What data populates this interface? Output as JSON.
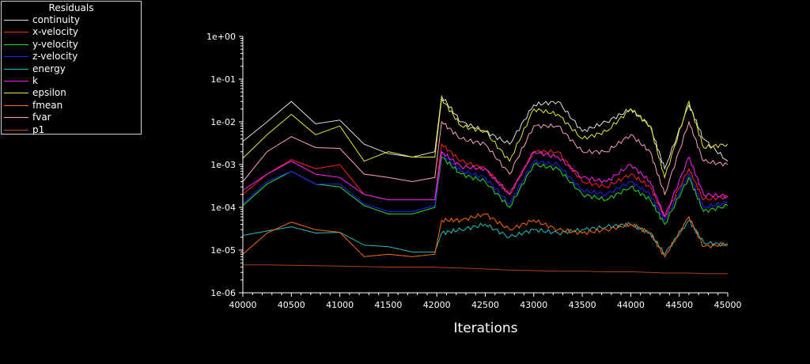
{
  "chart_data": {
    "type": "line",
    "title": "",
    "legend_title": "Residuals",
    "legend_position": "top-left",
    "xlabel": "Iterations",
    "ylabel": "",
    "xlim": [
      40000,
      45000
    ],
    "ylim": [
      1e-06,
      1
    ],
    "yscale": "log",
    "grid": false,
    "x_ticks": [
      40000,
      40500,
      41000,
      41500,
      42000,
      42500,
      43000,
      43500,
      44000,
      44500,
      45000
    ],
    "x_tick_labels": [
      "40000",
      "40500",
      "41000",
      "41500",
      "42000",
      "42500",
      "43000",
      "43500",
      "44000",
      "44500",
      "45000"
    ],
    "y_ticks": [
      1e-06,
      1e-05,
      0.0001,
      0.001,
      0.01,
      0.1,
      1
    ],
    "y_tick_labels": [
      "1e-06",
      "1e-05",
      "1e-04",
      "1e-03",
      "1e-02",
      "1e-01",
      "1e+00"
    ],
    "x": [
      40000,
      40250,
      40500,
      40750,
      41000,
      41250,
      41500,
      41750,
      41980,
      42050,
      42250,
      42500,
      42750,
      43000,
      43250,
      43500,
      43750,
      44000,
      44200,
      44350,
      44600,
      44750,
      45000
    ],
    "series": [
      {
        "name": "continuity",
        "color": "#e0e0e0",
        "values": [
          0.0035,
          0.01,
          0.03,
          0.009,
          0.011,
          0.003,
          0.0018,
          0.0015,
          0.002,
          0.04,
          0.01,
          0.006,
          0.003,
          0.025,
          0.03,
          0.006,
          0.01,
          0.02,
          0.008,
          0.0008,
          0.025,
          0.004,
          0.0012
        ]
      },
      {
        "name": "x-velocity",
        "color": "#ff2020",
        "values": [
          0.0002,
          0.0006,
          0.0013,
          0.0008,
          0.001,
          0.0002,
          0.00015,
          0.00015,
          0.00015,
          0.003,
          0.0012,
          0.0008,
          0.0002,
          0.002,
          0.002,
          0.0004,
          0.0003,
          0.0006,
          0.0003,
          6e-05,
          0.0008,
          0.00015,
          0.00018
        ]
      },
      {
        "name": "y-velocity",
        "color": "#20e020",
        "values": [
          0.00011,
          0.00035,
          0.0007,
          0.00035,
          0.0003,
          0.00011,
          7e-05,
          7e-05,
          0.0001,
          0.0015,
          0.0006,
          0.0004,
          0.0001,
          0.001,
          0.0008,
          0.0002,
          0.00015,
          0.0003,
          0.00015,
          4e-05,
          0.0005,
          8e-05,
          0.00011
        ]
      },
      {
        "name": "z-velocity",
        "color": "#2020ff",
        "values": [
          0.00012,
          0.0004,
          0.0007,
          0.00035,
          0.00035,
          0.00012,
          8e-05,
          8e-05,
          0.00011,
          0.0018,
          0.0007,
          0.0005,
          0.00012,
          0.0012,
          0.001,
          0.00025,
          0.0002,
          0.0004,
          0.0002,
          5e-05,
          0.0006,
          0.0001,
          0.00013
        ]
      },
      {
        "name": "energy",
        "color": "#20c0c0",
        "values": [
          2.2e-05,
          2.8e-05,
          3.5e-05,
          2.5e-05,
          2.6e-05,
          1.3e-05,
          1.2e-05,
          9e-06,
          9e-06,
          2.5e-05,
          3e-05,
          4e-05,
          2e-05,
          3e-05,
          2.5e-05,
          3e-05,
          3.5e-05,
          4e-05,
          2.5e-05,
          8e-06,
          5e-05,
          1.5e-05,
          1.3e-05
        ]
      },
      {
        "name": "k",
        "color": "#ff20ff",
        "values": [
          0.00025,
          0.0006,
          0.0012,
          0.0006,
          0.0005,
          0.0002,
          0.00015,
          0.00015,
          0.00015,
          0.002,
          0.0009,
          0.0008,
          0.0002,
          0.002,
          0.0015,
          0.0005,
          0.0004,
          0.001,
          0.0004,
          6e-05,
          0.0015,
          0.0002,
          0.00018
        ]
      },
      {
        "name": "epsilon",
        "color": "#e8e830",
        "values": [
          0.0014,
          0.005,
          0.015,
          0.005,
          0.008,
          0.0012,
          0.002,
          0.0015,
          0.0015,
          0.035,
          0.008,
          0.006,
          0.0012,
          0.02,
          0.015,
          0.004,
          0.006,
          0.02,
          0.008,
          0.0005,
          0.03,
          0.0025,
          0.003
        ]
      },
      {
        "name": "fmean",
        "color": "#ff6a00",
        "values": [
          8e-06,
          2.5e-05,
          4.5e-05,
          3e-05,
          2.6e-05,
          7e-06,
          8e-06,
          7e-06,
          8e-06,
          5e-05,
          5e-05,
          7e-05,
          3e-05,
          5e-05,
          3e-05,
          2.5e-05,
          3e-05,
          4e-05,
          2.5e-05,
          7e-06,
          6e-05,
          1.2e-05,
          1.4e-05
        ]
      },
      {
        "name": "fvar",
        "color": "#ffa0b4",
        "values": [
          0.0004,
          0.002,
          0.0045,
          0.0025,
          0.0024,
          0.0006,
          0.0005,
          0.0004,
          0.0005,
          0.01,
          0.004,
          0.003,
          0.0006,
          0.008,
          0.008,
          0.002,
          0.002,
          0.005,
          0.002,
          0.0002,
          0.01,
          0.0012,
          0.001
        ]
      },
      {
        "name": "p1",
        "color": "#b04010",
        "values": [
          4.5e-06,
          4.5e-06,
          4.4e-06,
          4.3e-06,
          4.2e-06,
          4.1e-06,
          4e-06,
          4e-06,
          4e-06,
          3.9e-06,
          3.8e-06,
          3.6e-06,
          3.4e-06,
          3.3e-06,
          3.2e-06,
          3.2e-06,
          3.1e-06,
          3.1e-06,
          3e-06,
          2.9e-06,
          2.9e-06,
          2.8e-06,
          2.8e-06
        ]
      }
    ]
  }
}
